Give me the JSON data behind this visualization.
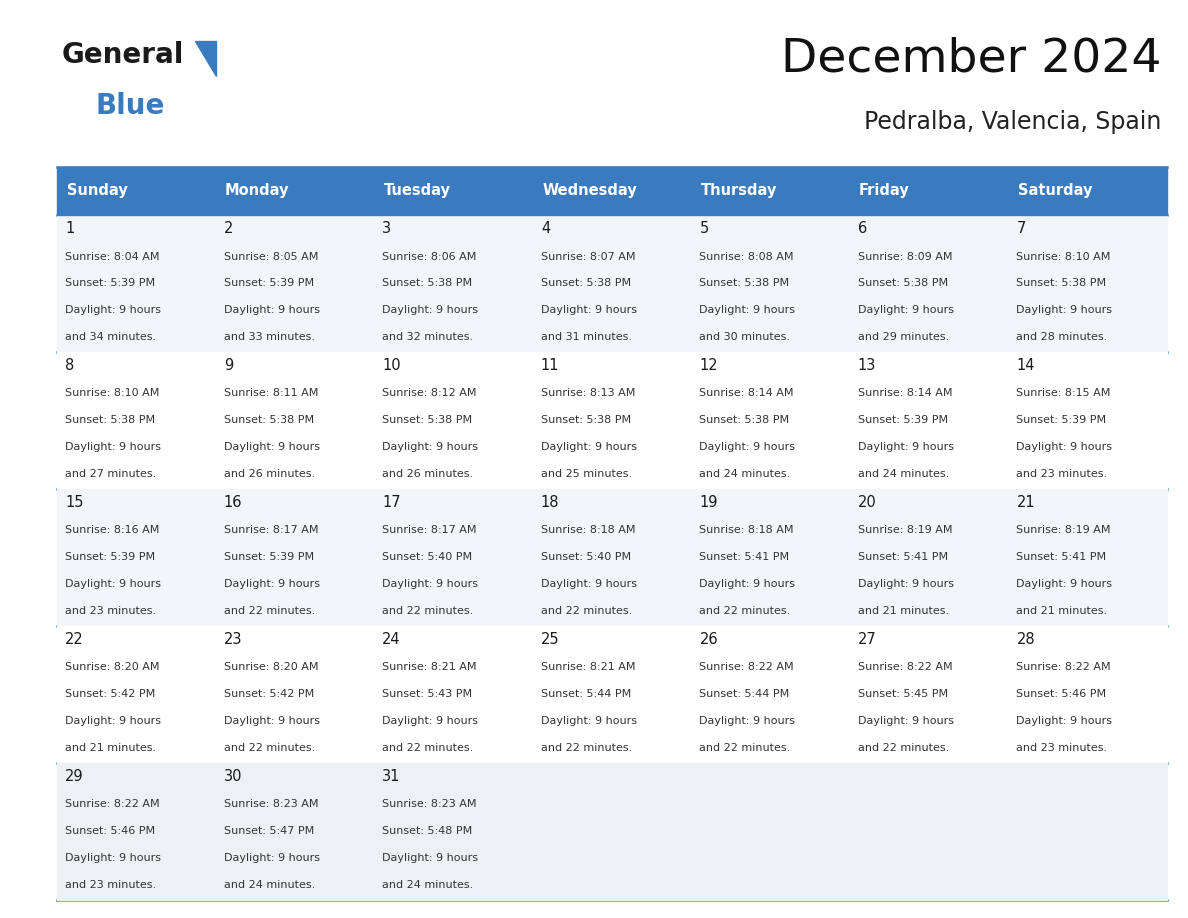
{
  "title": "December 2024",
  "subtitle": "Pedralba, Valencia, Spain",
  "header_bg": "#3a7bbf",
  "header_fg": "#ffffff",
  "days_of_week": [
    "Sunday",
    "Monday",
    "Tuesday",
    "Wednesday",
    "Thursday",
    "Friday",
    "Saturday"
  ],
  "border_color": "#3a7bbf",
  "text_color": "#333333",
  "row_bgs": [
    "#f2f6fa",
    "#ffffff",
    "#f2f6fa",
    "#ffffff",
    "#edf1f6"
  ],
  "calendar": [
    [
      {
        "day": 1,
        "sunrise": "8:04 AM",
        "sunset": "5:39 PM",
        "daylight": "9 hours and 34 minutes"
      },
      {
        "day": 2,
        "sunrise": "8:05 AM",
        "sunset": "5:39 PM",
        "daylight": "9 hours and 33 minutes"
      },
      {
        "day": 3,
        "sunrise": "8:06 AM",
        "sunset": "5:38 PM",
        "daylight": "9 hours and 32 minutes"
      },
      {
        "day": 4,
        "sunrise": "8:07 AM",
        "sunset": "5:38 PM",
        "daylight": "9 hours and 31 minutes"
      },
      {
        "day": 5,
        "sunrise": "8:08 AM",
        "sunset": "5:38 PM",
        "daylight": "9 hours and 30 minutes"
      },
      {
        "day": 6,
        "sunrise": "8:09 AM",
        "sunset": "5:38 PM",
        "daylight": "9 hours and 29 minutes"
      },
      {
        "day": 7,
        "sunrise": "8:10 AM",
        "sunset": "5:38 PM",
        "daylight": "9 hours and 28 minutes"
      }
    ],
    [
      {
        "day": 8,
        "sunrise": "8:10 AM",
        "sunset": "5:38 PM",
        "daylight": "9 hours and 27 minutes"
      },
      {
        "day": 9,
        "sunrise": "8:11 AM",
        "sunset": "5:38 PM",
        "daylight": "9 hours and 26 minutes"
      },
      {
        "day": 10,
        "sunrise": "8:12 AM",
        "sunset": "5:38 PM",
        "daylight": "9 hours and 26 minutes"
      },
      {
        "day": 11,
        "sunrise": "8:13 AM",
        "sunset": "5:38 PM",
        "daylight": "9 hours and 25 minutes"
      },
      {
        "day": 12,
        "sunrise": "8:14 AM",
        "sunset": "5:38 PM",
        "daylight": "9 hours and 24 minutes"
      },
      {
        "day": 13,
        "sunrise": "8:14 AM",
        "sunset": "5:39 PM",
        "daylight": "9 hours and 24 minutes"
      },
      {
        "day": 14,
        "sunrise": "8:15 AM",
        "sunset": "5:39 PM",
        "daylight": "9 hours and 23 minutes"
      }
    ],
    [
      {
        "day": 15,
        "sunrise": "8:16 AM",
        "sunset": "5:39 PM",
        "daylight": "9 hours and 23 minutes"
      },
      {
        "day": 16,
        "sunrise": "8:17 AM",
        "sunset": "5:39 PM",
        "daylight": "9 hours and 22 minutes"
      },
      {
        "day": 17,
        "sunrise": "8:17 AM",
        "sunset": "5:40 PM",
        "daylight": "9 hours and 22 minutes"
      },
      {
        "day": 18,
        "sunrise": "8:18 AM",
        "sunset": "5:40 PM",
        "daylight": "9 hours and 22 minutes"
      },
      {
        "day": 19,
        "sunrise": "8:18 AM",
        "sunset": "5:41 PM",
        "daylight": "9 hours and 22 minutes"
      },
      {
        "day": 20,
        "sunrise": "8:19 AM",
        "sunset": "5:41 PM",
        "daylight": "9 hours and 21 minutes"
      },
      {
        "day": 21,
        "sunrise": "8:19 AM",
        "sunset": "5:41 PM",
        "daylight": "9 hours and 21 minutes"
      }
    ],
    [
      {
        "day": 22,
        "sunrise": "8:20 AM",
        "sunset": "5:42 PM",
        "daylight": "9 hours and 21 minutes"
      },
      {
        "day": 23,
        "sunrise": "8:20 AM",
        "sunset": "5:42 PM",
        "daylight": "9 hours and 22 minutes"
      },
      {
        "day": 24,
        "sunrise": "8:21 AM",
        "sunset": "5:43 PM",
        "daylight": "9 hours and 22 minutes"
      },
      {
        "day": 25,
        "sunrise": "8:21 AM",
        "sunset": "5:44 PM",
        "daylight": "9 hours and 22 minutes"
      },
      {
        "day": 26,
        "sunrise": "8:22 AM",
        "sunset": "5:44 PM",
        "daylight": "9 hours and 22 minutes"
      },
      {
        "day": 27,
        "sunrise": "8:22 AM",
        "sunset": "5:45 PM",
        "daylight": "9 hours and 22 minutes"
      },
      {
        "day": 28,
        "sunrise": "8:22 AM",
        "sunset": "5:46 PM",
        "daylight": "9 hours and 23 minutes"
      }
    ],
    [
      {
        "day": 29,
        "sunrise": "8:22 AM",
        "sunset": "5:46 PM",
        "daylight": "9 hours and 23 minutes"
      },
      {
        "day": 30,
        "sunrise": "8:23 AM",
        "sunset": "5:47 PM",
        "daylight": "9 hours and 24 minutes"
      },
      {
        "day": 31,
        "sunrise": "8:23 AM",
        "sunset": "5:48 PM",
        "daylight": "9 hours and 24 minutes"
      },
      null,
      null,
      null,
      null
    ]
  ]
}
